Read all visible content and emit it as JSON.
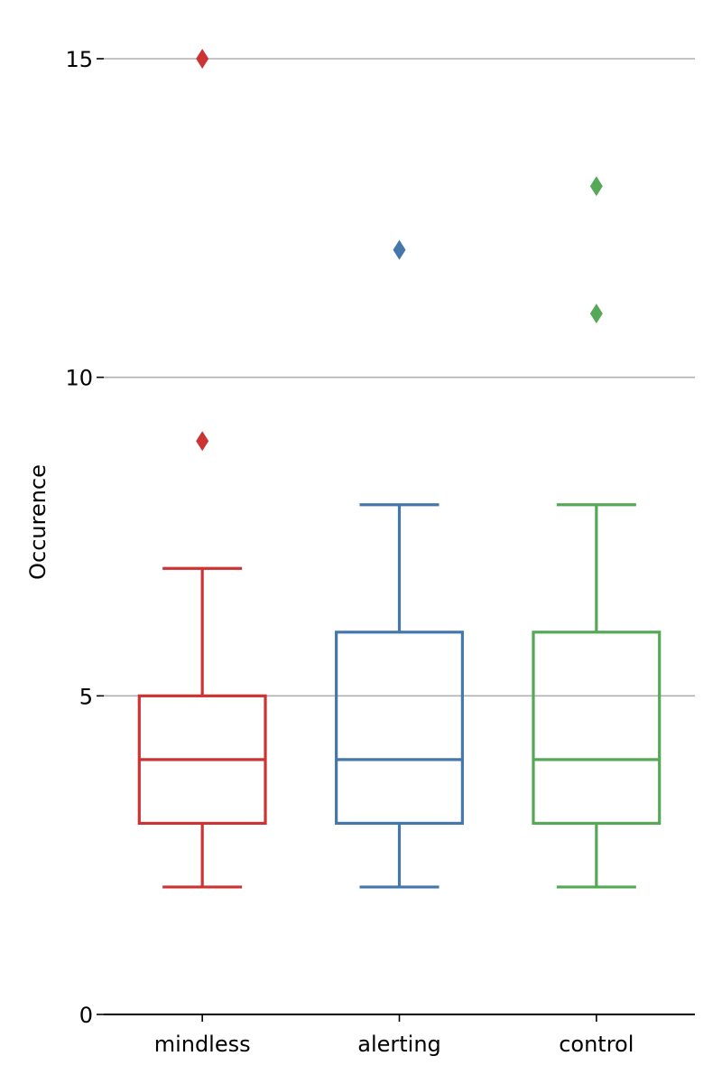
{
  "chart_data": {
    "type": "box",
    "ylabel": "Occurence",
    "xlabel": "",
    "ylim": [
      0,
      15
    ],
    "yticks": [
      0,
      5,
      10,
      15
    ],
    "grid": "horizontal",
    "categories": [
      "mindless",
      "alerting",
      "control"
    ],
    "colors": [
      "#cc3333",
      "#4477aa",
      "#55a855"
    ],
    "boxes": [
      {
        "category": "mindless",
        "whisker_low": 2,
        "q1": 3,
        "median": 4,
        "q3": 5,
        "whisker_high": 7,
        "outliers": [
          9,
          15
        ]
      },
      {
        "category": "alerting",
        "whisker_low": 2,
        "q1": 3,
        "median": 4,
        "q3": 6,
        "whisker_high": 8,
        "outliers": [
          12
        ]
      },
      {
        "category": "control",
        "whisker_low": 2,
        "q1": 3,
        "median": 4,
        "q3": 6,
        "whisker_high": 8,
        "outliers": [
          11,
          13
        ]
      }
    ]
  }
}
